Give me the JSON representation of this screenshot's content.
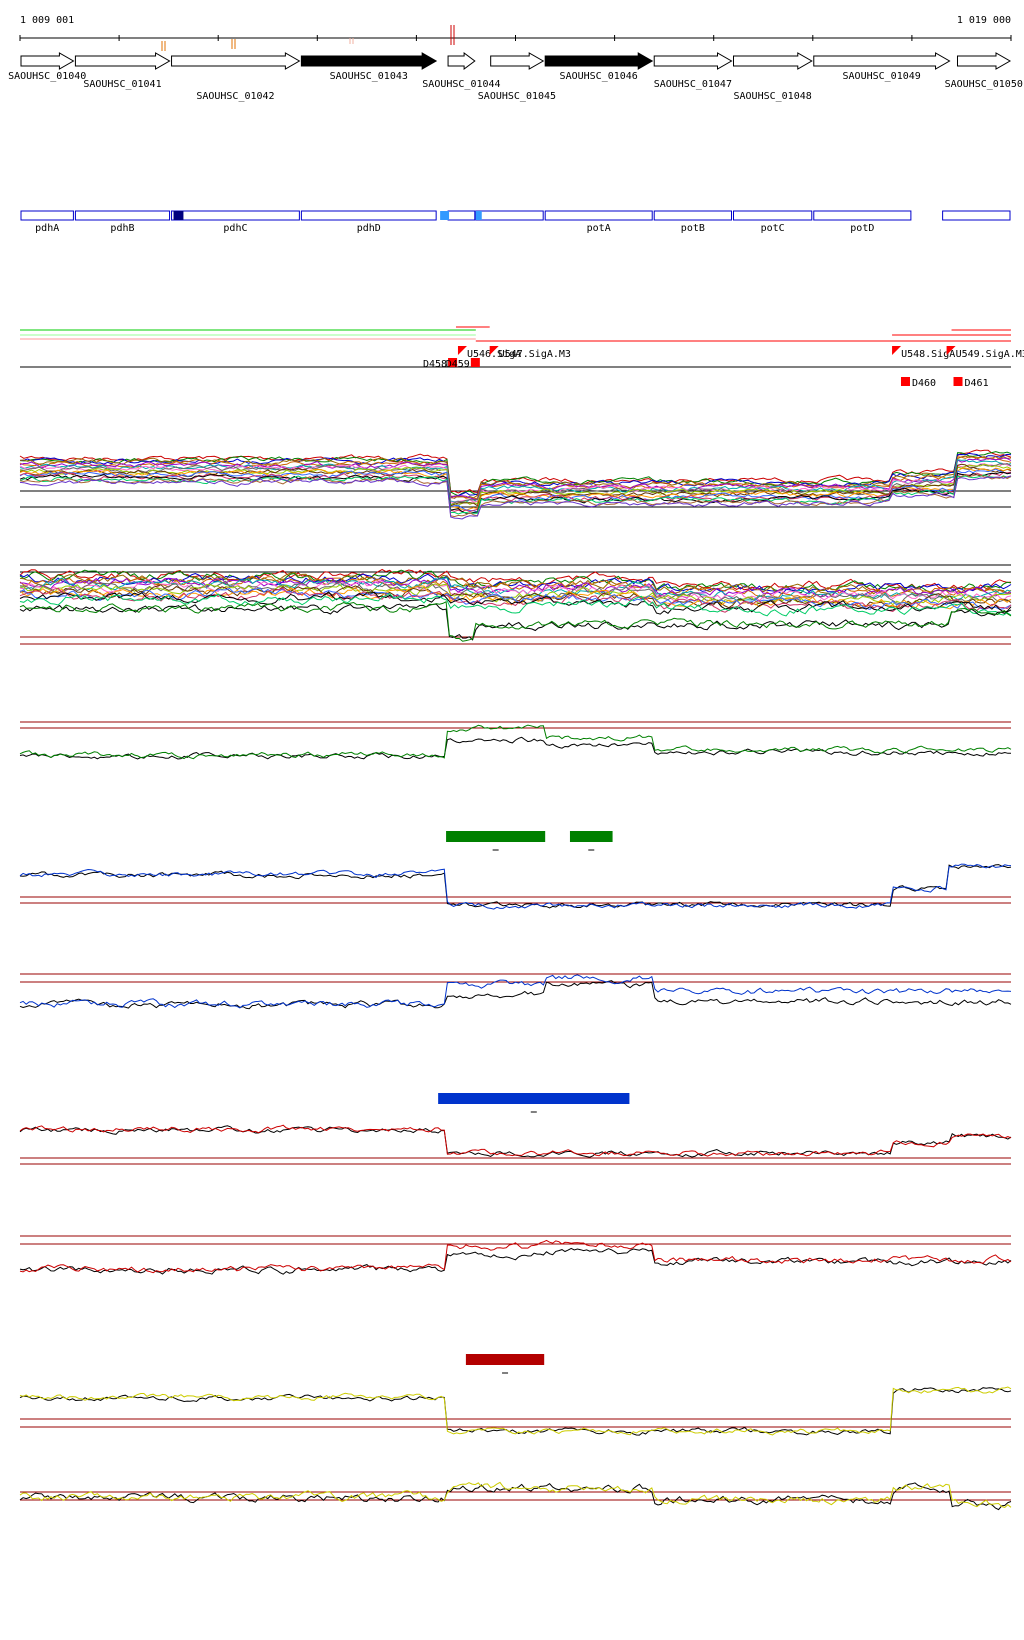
{
  "coordinates": {
    "start": 1009001,
    "end": 1019000,
    "start_label": "1 009 001",
    "end_label": "1 019 000"
  },
  "genes": [
    {
      "id": "SAOUHSC_01040",
      "start": 1009001,
      "end": 1009550,
      "strand": "+",
      "filled": false
    },
    {
      "id": "SAOUHSC_01041",
      "start": 1009550,
      "end": 1010520,
      "strand": "+",
      "filled": false
    },
    {
      "id": "SAOUHSC_01042",
      "start": 1010520,
      "end": 1011830,
      "strand": "+",
      "filled": false
    },
    {
      "id": "SAOUHSC_01043",
      "start": 1011830,
      "end": 1013210,
      "strand": "+",
      "filled": true
    },
    {
      "id": "SAOUHSC_01044",
      "start": 1013310,
      "end": 1013600,
      "strand": "+",
      "filled": false
    },
    {
      "id": "SAOUHSC_01045",
      "start": 1013740,
      "end": 1014290,
      "strand": "+",
      "filled": false
    },
    {
      "id": "SAOUHSC_01046",
      "start": 1014290,
      "end": 1015390,
      "strand": "+",
      "filled": true
    },
    {
      "id": "SAOUHSC_01047",
      "start": 1015390,
      "end": 1016190,
      "strand": "+",
      "filled": false
    },
    {
      "id": "SAOUHSC_01048",
      "start": 1016190,
      "end": 1017000,
      "strand": "+",
      "filled": false
    },
    {
      "id": "SAOUHSC_01049",
      "start": 1017000,
      "end": 1018390,
      "strand": "+",
      "filled": false
    },
    {
      "id": "SAOUHSC_01050",
      "start": 1018450,
      "end": 1019000,
      "strand": "+",
      "filled": false
    }
  ],
  "annotations": [
    {
      "name": "pdhA",
      "start": 1009001,
      "end": 1009550
    },
    {
      "name": "pdhB",
      "start": 1009550,
      "end": 1010520
    },
    {
      "name": "pdhC",
      "start": 1010520,
      "end": 1011830
    },
    {
      "name": "pdhD",
      "start": 1011830,
      "end": 1013210
    },
    {
      "name": "",
      "start": 1013310,
      "end": 1013600
    },
    {
      "name": "",
      "start": 1013590,
      "end": 1014290
    },
    {
      "name": "potA",
      "start": 1014290,
      "end": 1015390
    },
    {
      "name": "potB",
      "start": 1015390,
      "end": 1016190
    },
    {
      "name": "potC",
      "start": 1016190,
      "end": 1017000
    },
    {
      "name": "potD",
      "start": 1017000,
      "end": 1018000
    },
    {
      "name": "",
      "start": 1018300,
      "end": 1019000
    }
  ],
  "annotation_features": [
    {
      "start": 1010550,
      "end": 1010650,
      "color": "#000080"
    },
    {
      "start": 1013240,
      "end": 1013330,
      "color": "#3399ff"
    },
    {
      "start": 1013600,
      "end": 1013660,
      "color": "#3399ff"
    }
  ],
  "segments": [
    {
      "label": "D458",
      "pos": 1013320
    },
    {
      "label": "D459",
      "pos": 1013550
    },
    {
      "label": "D460",
      "pos": 1017890
    },
    {
      "label": "D461",
      "pos": 1018420
    }
  ],
  "segment_upstream": [
    {
      "label": "U546.SigA",
      "pos": 1013420
    },
    {
      "label": "U547.SigA.M3",
      "pos": 1013740
    },
    {
      "label": "U548.SigA",
      "pos": 1017800
    },
    {
      "label": "U549.SigA.M3",
      "pos": 1018350
    }
  ],
  "highlight_blocks": [
    {
      "start": 1013300,
      "end": 1014300,
      "color": "#008000"
    },
    {
      "start": 1014550,
      "end": 1014980,
      "color": "#008000"
    },
    {
      "start": 1013220,
      "end": 1015150,
      "color": "#0033cc"
    },
    {
      "start": 1013500,
      "end": 1014290,
      "color": "#b30000"
    }
  ],
  "colors": {
    "gene_outline": "#000000",
    "annotation_outline": "#0000cc",
    "segment": "#ff0000",
    "green": "#008000",
    "blue": "#0033cc",
    "red": "#cc0000",
    "yellow": "#cccc00",
    "baseline": "#990000"
  }
}
